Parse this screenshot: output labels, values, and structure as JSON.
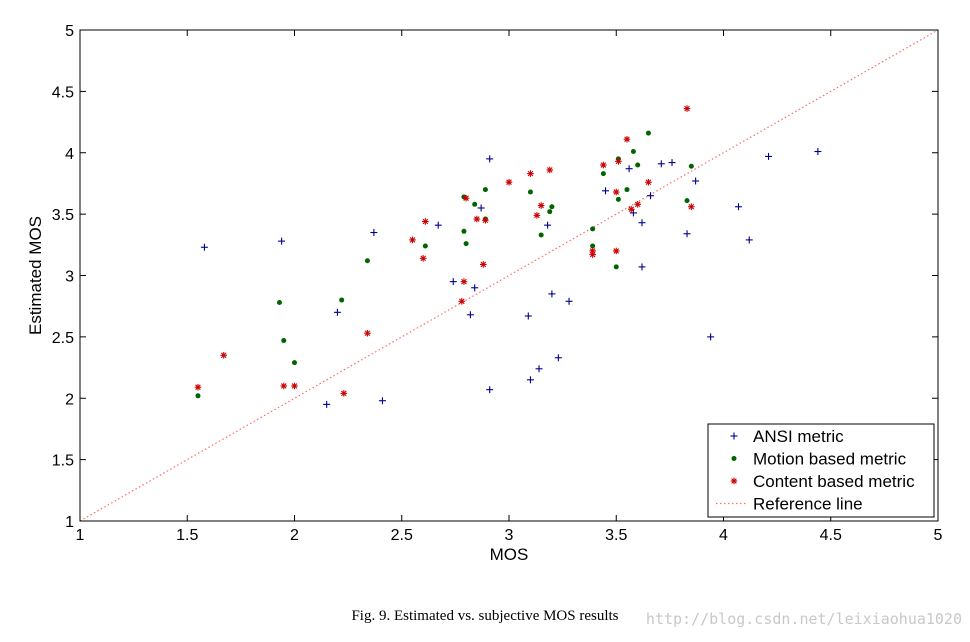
{
  "caption": "Fig. 9.   Estimated vs. subjective MOS results",
  "watermark": "http://blog.csdn.net/leixiaohua1020",
  "chart_data": {
    "type": "scatter",
    "title": "",
    "xlabel": "MOS",
    "ylabel": "Estimated MOS",
    "xlim": [
      1,
      5
    ],
    "ylim": [
      1,
      5
    ],
    "xticks": [
      "1",
      "1.5",
      "2",
      "2.5",
      "3",
      "3.5",
      "4",
      "4.5",
      "5"
    ],
    "yticks": [
      "1",
      "1.5",
      "2",
      "2.5",
      "3",
      "3.5",
      "4",
      "4.5",
      "5"
    ],
    "grid": false,
    "legend_position": "bottom-right",
    "series": [
      {
        "name": "ANSI metric",
        "marker": "plus",
        "color": "#00008b",
        "points": [
          [
            1.58,
            3.23
          ],
          [
            1.94,
            3.28
          ],
          [
            2.15,
            1.95
          ],
          [
            2.2,
            2.7
          ],
          [
            2.37,
            3.35
          ],
          [
            2.41,
            1.98
          ],
          [
            2.67,
            3.41
          ],
          [
            2.74,
            2.95
          ],
          [
            2.82,
            2.68
          ],
          [
            2.84,
            2.9
          ],
          [
            2.87,
            3.55
          ],
          [
            2.91,
            3.95
          ],
          [
            2.91,
            2.07
          ],
          [
            3.09,
            2.67
          ],
          [
            3.1,
            2.15
          ],
          [
            3.14,
            2.24
          ],
          [
            3.18,
            3.41
          ],
          [
            3.2,
            2.85
          ],
          [
            3.23,
            2.33
          ],
          [
            3.28,
            2.79
          ],
          [
            3.45,
            3.69
          ],
          [
            3.56,
            3.87
          ],
          [
            3.58,
            3.51
          ],
          [
            3.62,
            3.43
          ],
          [
            3.62,
            3.07
          ],
          [
            3.66,
            3.65
          ],
          [
            3.71,
            3.91
          ],
          [
            3.76,
            3.92
          ],
          [
            3.83,
            3.34
          ],
          [
            3.87,
            3.77
          ],
          [
            3.94,
            2.5
          ],
          [
            4.07,
            3.56
          ],
          [
            4.12,
            3.29
          ],
          [
            4.21,
            3.97
          ],
          [
            4.44,
            4.01
          ]
        ]
      },
      {
        "name": "Motion based metric",
        "marker": "dot",
        "color": "#006400",
        "points": [
          [
            1.55,
            2.02
          ],
          [
            1.93,
            2.78
          ],
          [
            1.95,
            2.47
          ],
          [
            2.0,
            2.29
          ],
          [
            2.22,
            2.8
          ],
          [
            2.34,
            3.12
          ],
          [
            2.61,
            3.24
          ],
          [
            2.79,
            3.64
          ],
          [
            2.79,
            3.36
          ],
          [
            2.8,
            3.26
          ],
          [
            2.84,
            3.58
          ],
          [
            2.89,
            3.46
          ],
          [
            2.89,
            3.7
          ],
          [
            3.1,
            3.68
          ],
          [
            3.15,
            3.33
          ],
          [
            3.19,
            3.52
          ],
          [
            3.2,
            3.56
          ],
          [
            3.39,
            3.38
          ],
          [
            3.39,
            3.24
          ],
          [
            3.44,
            3.83
          ],
          [
            3.5,
            3.07
          ],
          [
            3.51,
            3.62
          ],
          [
            3.51,
            3.95
          ],
          [
            3.55,
            3.7
          ],
          [
            3.58,
            4.01
          ],
          [
            3.6,
            3.9
          ],
          [
            3.65,
            4.16
          ],
          [
            3.83,
            3.61
          ],
          [
            3.85,
            3.89
          ]
        ]
      },
      {
        "name": "Content based metric",
        "marker": "star",
        "color": "#cc0000",
        "points": [
          [
            1.55,
            2.09
          ],
          [
            1.67,
            2.35
          ],
          [
            1.95,
            2.1
          ],
          [
            2.0,
            2.1
          ],
          [
            2.23,
            2.04
          ],
          [
            2.34,
            2.53
          ],
          [
            2.55,
            3.29
          ],
          [
            2.6,
            3.14
          ],
          [
            2.61,
            3.44
          ],
          [
            2.78,
            2.79
          ],
          [
            2.79,
            2.95
          ],
          [
            2.8,
            3.63
          ],
          [
            2.85,
            3.46
          ],
          [
            2.88,
            3.09
          ],
          [
            2.89,
            3.45
          ],
          [
            3.0,
            3.76
          ],
          [
            3.1,
            3.83
          ],
          [
            3.13,
            3.49
          ],
          [
            3.15,
            3.57
          ],
          [
            3.19,
            3.86
          ],
          [
            3.39,
            3.2
          ],
          [
            3.39,
            3.17
          ],
          [
            3.44,
            3.9
          ],
          [
            3.5,
            3.2
          ],
          [
            3.5,
            3.68
          ],
          [
            3.51,
            3.93
          ],
          [
            3.55,
            4.11
          ],
          [
            3.57,
            3.54
          ],
          [
            3.6,
            3.58
          ],
          [
            3.65,
            3.76
          ],
          [
            3.83,
            4.36
          ],
          [
            3.85,
            3.56
          ]
        ]
      },
      {
        "name": "Reference line",
        "marker": "dotted-line",
        "color": "#ff6b6b",
        "points": [
          [
            1,
            1
          ],
          [
            5,
            5
          ]
        ]
      }
    ]
  }
}
